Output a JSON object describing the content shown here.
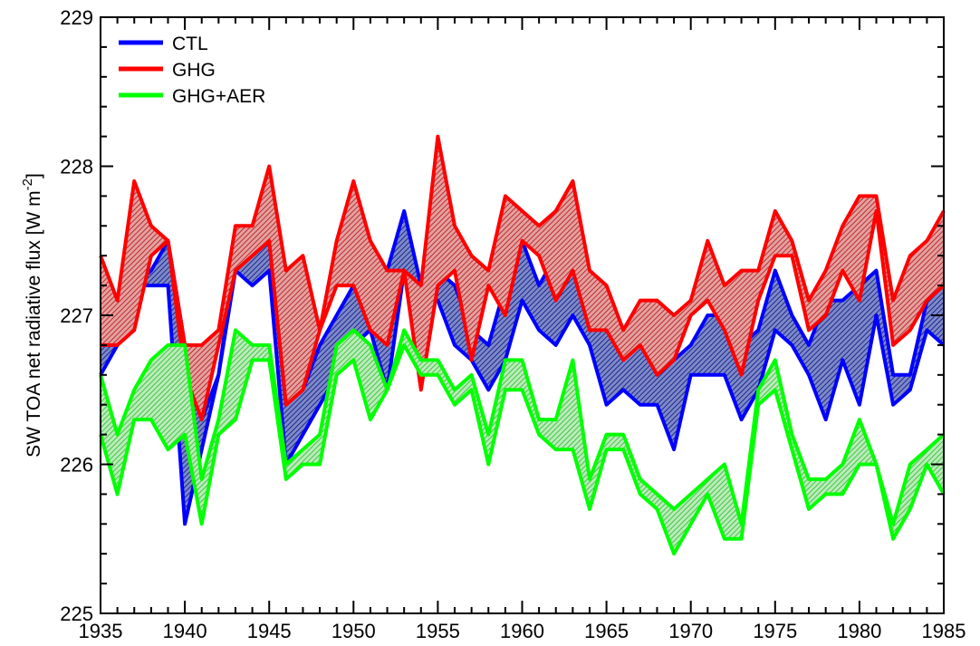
{
  "chart_data": {
    "type": "area",
    "title": "",
    "xlabel": "",
    "ylabel": {
      "main": "SW TOA net radiative flux [W m",
      "superscript": "-2",
      "close": "]"
    },
    "xlim": [
      1935,
      1985
    ],
    "ylim": [
      225,
      229
    ],
    "xticks": [
      "1935",
      "1940",
      "1945",
      "1950",
      "1955",
      "1960",
      "1965",
      "1970",
      "1975",
      "1980",
      "1985"
    ],
    "yticks": [
      "225",
      "226",
      "227",
      "228",
      "229"
    ],
    "grid": false,
    "legend_position": "top-left",
    "legend": [
      {
        "label": "CTL",
        "color": "#0000ff"
      },
      {
        "label": "GHG",
        "color": "#ff0000"
      },
      {
        "label": "GHG+AER",
        "color": "#00ff00"
      }
    ],
    "x": [
      1935,
      1936,
      1937,
      1938,
      1939,
      1940,
      1941,
      1942,
      1943,
      1944,
      1945,
      1946,
      1947,
      1948,
      1949,
      1950,
      1951,
      1952,
      1953,
      1954,
      1955,
      1956,
      1957,
      1958,
      1959,
      1960,
      1961,
      1962,
      1963,
      1964,
      1965,
      1966,
      1967,
      1968,
      1969,
      1970,
      1971,
      1972,
      1973,
      1974,
      1975,
      1976,
      1977,
      1978,
      1979,
      1980,
      1981,
      1982,
      1983,
      1984,
      1985
    ],
    "series": [
      {
        "name": "CTL",
        "color": "#0000ff",
        "fill": "#2f3f9f",
        "upper": [
          226.8,
          226.8,
          227.2,
          227.3,
          227.5,
          226.8,
          226.3,
          226.6,
          227.4,
          227.4,
          227.5,
          226.4,
          226.5,
          226.8,
          227.0,
          227.2,
          227.0,
          227.3,
          227.7,
          227.2,
          227.3,
          227.2,
          226.9,
          226.8,
          227.2,
          227.5,
          227.2,
          227.4,
          227.4,
          227.1,
          226.9,
          226.8,
          226.9,
          226.8,
          226.7,
          226.8,
          227.0,
          227.0,
          226.8,
          226.9,
          227.3,
          227.0,
          226.8,
          227.1,
          227.1,
          227.2,
          227.3,
          226.6,
          226.6,
          227.1,
          227.2
        ],
        "lower": [
          226.6,
          226.8,
          227.2,
          227.2,
          227.2,
          225.6,
          226.1,
          226.6,
          227.3,
          227.2,
          227.3,
          226.0,
          226.2,
          226.4,
          226.6,
          226.8,
          226.9,
          226.5,
          227.3,
          227.1,
          227.1,
          226.8,
          226.7,
          226.5,
          226.7,
          227.1,
          226.9,
          226.8,
          227.0,
          226.8,
          226.4,
          226.5,
          226.4,
          226.4,
          226.1,
          226.6,
          226.6,
          226.6,
          226.3,
          226.5,
          226.9,
          226.8,
          226.6,
          226.3,
          226.7,
          226.4,
          227.0,
          226.4,
          226.5,
          226.9,
          226.8
        ]
      },
      {
        "name": "GHG",
        "color": "#ff0000",
        "fill": "#c94545",
        "upper": [
          227.4,
          227.1,
          227.9,
          227.6,
          227.5,
          226.8,
          226.8,
          226.9,
          227.6,
          227.6,
          228.0,
          227.3,
          227.4,
          226.9,
          227.5,
          227.9,
          227.5,
          227.3,
          227.3,
          227.2,
          228.2,
          227.6,
          227.4,
          227.3,
          227.8,
          227.7,
          227.6,
          227.7,
          227.9,
          227.3,
          227.2,
          226.9,
          227.1,
          227.1,
          227.0,
          227.1,
          227.5,
          227.2,
          227.3,
          227.3,
          227.7,
          227.5,
          227.1,
          227.3,
          227.6,
          227.8,
          227.8,
          227.1,
          227.4,
          227.5,
          227.7
        ],
        "lower": [
          226.8,
          226.8,
          226.9,
          227.4,
          227.5,
          226.6,
          226.3,
          226.8,
          227.3,
          227.4,
          227.5,
          226.4,
          226.5,
          226.9,
          227.2,
          227.2,
          226.9,
          226.8,
          227.3,
          226.5,
          227.2,
          227.3,
          226.7,
          227.2,
          227.0,
          227.5,
          227.4,
          227.1,
          227.3,
          226.9,
          226.9,
          226.7,
          226.8,
          226.6,
          226.7,
          227.0,
          227.1,
          226.9,
          226.6,
          227.1,
          227.4,
          227.4,
          226.9,
          227.0,
          227.3,
          227.1,
          227.7,
          226.8,
          226.9,
          227.1,
          227.2
        ]
      },
      {
        "name": "GHG+AER",
        "color": "#00ff00",
        "fill": "#6fd66f",
        "upper": [
          226.6,
          226.2,
          226.5,
          226.7,
          226.8,
          226.8,
          225.9,
          226.3,
          226.9,
          226.8,
          226.8,
          226.0,
          226.1,
          226.2,
          226.8,
          226.9,
          226.8,
          226.5,
          226.9,
          226.7,
          226.7,
          226.5,
          226.6,
          226.2,
          226.7,
          226.7,
          226.3,
          226.3,
          226.7,
          225.9,
          226.2,
          226.2,
          225.9,
          225.8,
          225.7,
          225.8,
          225.9,
          226.0,
          225.6,
          226.5,
          226.7,
          226.2,
          225.9,
          225.9,
          226.0,
          226.3,
          226.0,
          225.6,
          226.0,
          226.1,
          226.2
        ],
        "lower": [
          226.2,
          225.8,
          226.3,
          226.3,
          226.1,
          226.2,
          225.6,
          226.2,
          226.3,
          226.7,
          226.7,
          225.9,
          226.0,
          226.0,
          226.6,
          226.7,
          226.3,
          226.5,
          226.8,
          226.6,
          226.6,
          226.4,
          226.5,
          226.0,
          226.5,
          226.5,
          226.2,
          226.1,
          226.1,
          225.7,
          226.1,
          226.1,
          225.8,
          225.7,
          225.4,
          225.6,
          225.8,
          225.5,
          225.5,
          226.4,
          226.5,
          226.1,
          225.7,
          225.8,
          225.8,
          226.0,
          226.0,
          225.5,
          225.7,
          226.0,
          225.8
        ]
      }
    ]
  }
}
